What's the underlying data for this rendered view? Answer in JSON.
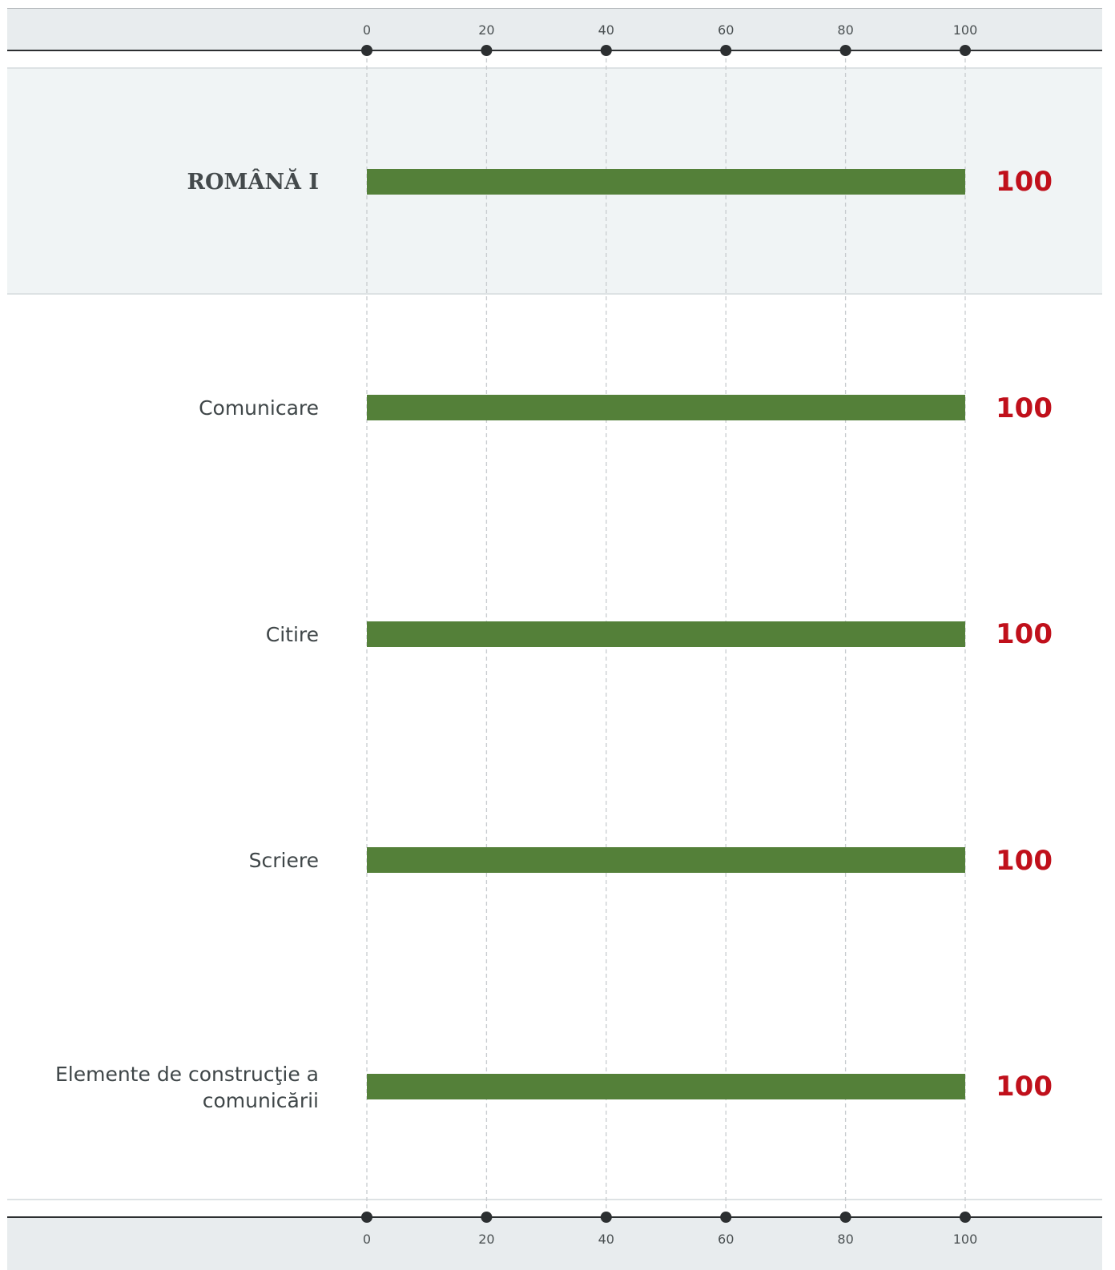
{
  "chart_data": {
    "type": "bar",
    "orientation": "horizontal",
    "categories": [
      "ROMÂNĂ I",
      "Comunicare",
      "Citire",
      "Scriere",
      "Elemente de construcţie a comunicării"
    ],
    "values": [
      100,
      100,
      100,
      100,
      100
    ],
    "score_labels": [
      "100",
      "100",
      "100",
      "100",
      "100"
    ],
    "xlim": [
      0,
      100
    ],
    "xticks": [
      "0",
      "20",
      "40",
      "60",
      "80",
      "100"
    ],
    "grid": true,
    "bar_color": "#548039",
    "score_color": "#c0101b"
  },
  "rows": [
    {
      "label": "ROMÂNĂ I",
      "score": "100"
    },
    {
      "label": "Comunicare",
      "score": "100"
    },
    {
      "label": "Citire",
      "score": "100"
    },
    {
      "label": "Scriere",
      "score": "100"
    },
    {
      "label_line1": "Elemente de construcţie a",
      "label_line2": "comunicării",
      "score": "100"
    }
  ],
  "axis_top": {
    "ticks": [
      "0",
      "20",
      "40",
      "60",
      "80",
      "100"
    ]
  },
  "axis_bottom": {
    "ticks": [
      "0",
      "20",
      "40",
      "60",
      "80",
      "100"
    ]
  }
}
